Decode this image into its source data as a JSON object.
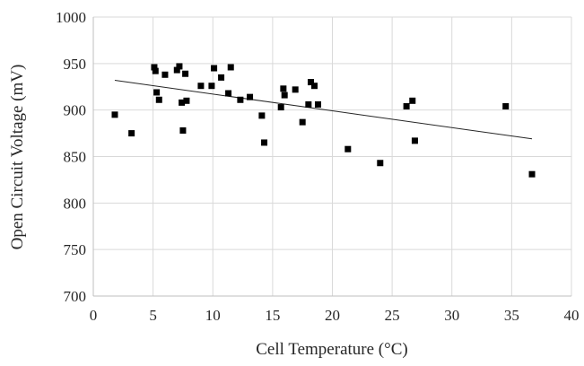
{
  "chart_data": {
    "type": "scatter",
    "xlabel": "Cell Temperature (°C)",
    "ylabel": "Open Circuit Voltage (mV)",
    "xlim": [
      0,
      40
    ],
    "ylim": [
      700,
      1000
    ],
    "x_ticks": [
      "0",
      "5",
      "10",
      "15",
      "20",
      "25",
      "30",
      "35",
      "40"
    ],
    "y_ticks": [
      "700",
      "750",
      "800",
      "850",
      "900",
      "950",
      "1000"
    ],
    "grid": true,
    "legend": "none",
    "marker": "square",
    "marker_color": "#000000",
    "series": [
      {
        "points": [
          [
            1.8,
            895
          ],
          [
            3.2,
            875
          ],
          [
            5.1,
            946
          ],
          [
            5.2,
            942
          ],
          [
            5.3,
            919
          ],
          [
            5.5,
            911
          ],
          [
            6.0,
            938
          ],
          [
            7.0,
            943
          ],
          [
            7.2,
            947
          ],
          [
            7.4,
            908
          ],
          [
            7.5,
            878
          ],
          [
            7.7,
            939
          ],
          [
            7.8,
            910
          ],
          [
            9.0,
            926
          ],
          [
            9.9,
            926
          ],
          [
            10.1,
            945
          ],
          [
            10.7,
            935
          ],
          [
            11.3,
            918
          ],
          [
            11.5,
            946
          ],
          [
            12.3,
            911
          ],
          [
            13.1,
            914
          ],
          [
            14.1,
            894
          ],
          [
            14.3,
            865
          ],
          [
            15.7,
            903
          ],
          [
            15.9,
            923
          ],
          [
            16.0,
            916
          ],
          [
            16.9,
            922
          ],
          [
            17.5,
            887
          ],
          [
            18.0,
            906
          ],
          [
            18.2,
            930
          ],
          [
            18.5,
            926
          ],
          [
            18.8,
            906
          ],
          [
            21.3,
            858
          ],
          [
            24.0,
            843
          ],
          [
            26.2,
            904
          ],
          [
            26.7,
            910
          ],
          [
            26.9,
            867
          ],
          [
            34.5,
            904
          ],
          [
            36.7,
            831
          ]
        ]
      }
    ],
    "trendline": {
      "type": "linear",
      "x": [
        1.8,
        36.7
      ],
      "y": [
        932,
        869
      ]
    }
  }
}
